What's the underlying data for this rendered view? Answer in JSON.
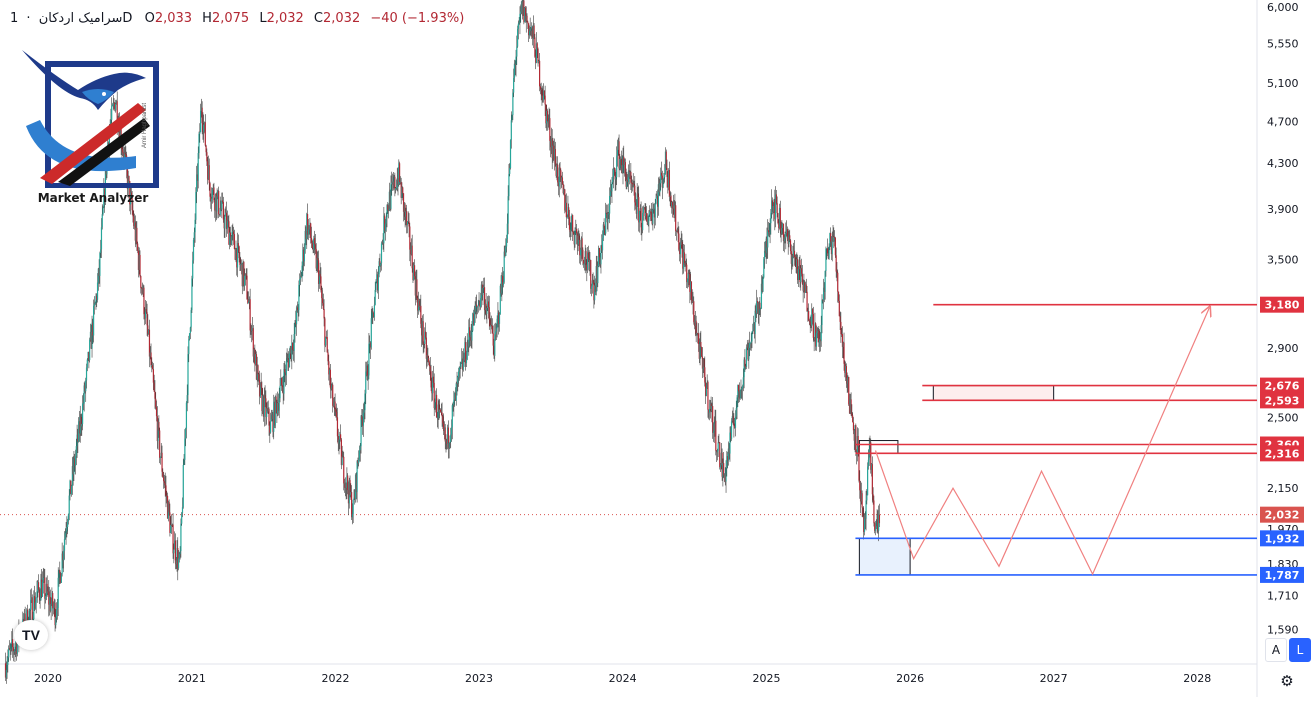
{
  "legend": {
    "symbol": "سرامیک اردکان",
    "interval": "1D",
    "open_label": "O",
    "open": "2,033",
    "high_label": "H",
    "high": "2,075",
    "low_label": "L",
    "low": "2,032",
    "close_label": "C",
    "close": "2,032",
    "change": "−40 (−1.93%)"
  },
  "logo": {
    "text": "Market Analyzer",
    "signature": "Amir Haghparast"
  },
  "tv_logo": "TV",
  "buttons": {
    "auto_label": "A",
    "log_label": "L",
    "settings_icon": "gear-icon"
  },
  "colors": {
    "candle_up": "#26a69a",
    "candle_down": "#b22833",
    "candle_body": "#4a2a2a",
    "resistance": "#e03340",
    "support": "#2962ff",
    "last_price": "#d9534f",
    "zone_fill": "#e8f1fd",
    "projection": "#f08080"
  },
  "chart_data": {
    "type": "candlestick",
    "symbol": "سرامیک اردکان",
    "interval": "1D",
    "y_scale": "log",
    "ylim": [
      1500,
      6000
    ],
    "x_range": [
      "2019-09-01",
      "2028-06-01"
    ],
    "x_ticks": [
      "2020",
      "2021",
      "2022",
      "2023",
      "2024",
      "2025",
      "2026",
      "2027",
      "2028"
    ],
    "y_ticks": [
      "1,590",
      "1,710",
      "1,830",
      "1,970",
      "2,150",
      "2,500",
      "2,900",
      "3,500",
      "3,900",
      "4,300",
      "4,700",
      "5,100",
      "5,550",
      "6,000"
    ],
    "price_path": [
      [
        "2019-09-15",
        1480
      ],
      [
        "2019-11-01",
        1600
      ],
      [
        "2019-12-15",
        1750
      ],
      [
        "2020-01-20",
        1650
      ],
      [
        "2020-02-20",
        2050
      ],
      [
        "2020-04-01",
        2600
      ],
      [
        "2020-05-10",
        3400
      ],
      [
        "2020-06-01",
        4500
      ],
      [
        "2020-06-20",
        4950
      ],
      [
        "2020-07-15",
        4300
      ],
      [
        "2020-08-10",
        3700
      ],
      [
        "2020-09-10",
        3000
      ],
      [
        "2020-10-10",
        2350
      ],
      [
        "2020-11-10",
        1950
      ],
      [
        "2020-12-01",
        1820
      ],
      [
        "2020-12-20",
        2700
      ],
      [
        "2021-01-10",
        3900
      ],
      [
        "2021-01-25",
        4900
      ],
      [
        "2021-02-15",
        4100
      ],
      [
        "2021-03-15",
        3900
      ],
      [
        "2021-04-20",
        3600
      ],
      [
        "2021-05-20",
        3300
      ],
      [
        "2021-06-20",
        2650
      ],
      [
        "2021-07-20",
        2450
      ],
      [
        "2021-08-20",
        2700
      ],
      [
        "2021-09-20",
        3000
      ],
      [
        "2021-10-20",
        3800
      ],
      [
        "2021-11-20",
        3400
      ],
      [
        "2021-12-20",
        2650
      ],
      [
        "2022-01-20",
        2250
      ],
      [
        "2022-02-15",
        2050
      ],
      [
        "2022-03-10",
        2500
      ],
      [
        "2022-04-10",
        3200
      ],
      [
        "2022-05-10",
        3900
      ],
      [
        "2022-06-10",
        4200
      ],
      [
        "2022-07-10",
        3600
      ],
      [
        "2022-08-10",
        3000
      ],
      [
        "2022-09-10",
        2600
      ],
      [
        "2022-10-10",
        2350
      ],
      [
        "2022-11-10",
        2700
      ],
      [
        "2022-12-10",
        3000
      ],
      [
        "2023-01-10",
        3300
      ],
      [
        "2023-02-10",
        2900
      ],
      [
        "2023-03-10",
        3600
      ],
      [
        "2023-04-01",
        5300
      ],
      [
        "2023-04-20",
        6000
      ],
      [
        "2023-05-20",
        5600
      ],
      [
        "2023-06-20",
        4800
      ],
      [
        "2023-07-20",
        4200
      ],
      [
        "2023-08-20",
        3800
      ],
      [
        "2023-09-20",
        3600
      ],
      [
        "2023-10-20",
        3300
      ],
      [
        "2023-11-20",
        3800
      ],
      [
        "2023-12-20",
        4400
      ],
      [
        "2024-01-20",
        4100
      ],
      [
        "2024-02-20",
        3800
      ],
      [
        "2024-03-20",
        3900
      ],
      [
        "2024-04-20",
        4300
      ],
      [
        "2024-05-20",
        3700
      ],
      [
        "2024-06-20",
        3300
      ],
      [
        "2024-07-20",
        2800
      ],
      [
        "2024-08-20",
        2450
      ],
      [
        "2024-09-15",
        2200
      ],
      [
        "2024-10-15",
        2550
      ],
      [
        "2024-11-15",
        2900
      ],
      [
        "2024-12-15",
        3200
      ],
      [
        "2025-01-15",
        4000
      ],
      [
        "2025-02-15",
        3700
      ],
      [
        "2025-03-15",
        3500
      ],
      [
        "2025-04-15",
        3200
      ],
      [
        "2025-05-15",
        2900
      ],
      [
        "2025-06-01",
        3500
      ],
      [
        "2025-06-20",
        3700
      ],
      [
        "2025-07-10",
        3000
      ],
      [
        "2025-07-30",
        2600
      ],
      [
        "2025-08-20",
        2350
      ],
      [
        "2025-09-05",
        1930
      ],
      [
        "2025-09-20",
        2330
      ],
      [
        "2025-10-05",
        1960
      ],
      [
        "2025-10-15",
        2032
      ]
    ],
    "last_price": "2,032",
    "horizontal_levels": [
      {
        "value": 3180,
        "label": "3,180",
        "kind": "resistance"
      },
      {
        "value": 2676,
        "label": "2,676",
        "kind": "resistance"
      },
      {
        "value": 2593,
        "label": "2,593",
        "kind": "resistance"
      },
      {
        "value": 2360,
        "label": "2,360",
        "kind": "resistance"
      },
      {
        "value": 2316,
        "label": "2,316",
        "kind": "resistance"
      },
      {
        "value": 1932,
        "label": "1,932",
        "kind": "support"
      },
      {
        "value": 1787,
        "label": "1,787",
        "kind": "support"
      }
    ],
    "level_starts": {
      "3180": "2026-03-01",
      "2676": "2026-02-01",
      "2593": "2026-02-01",
      "2360": "2025-08-15",
      "2316": "2025-08-15",
      "1932": "2025-08-15",
      "1787": "2025-08-15"
    },
    "zones": [
      {
        "kind": "resistance",
        "x0": "2026-03-01",
        "x1": "2027-01-01",
        "y0": 2593,
        "y1": 2676
      },
      {
        "kind": "support",
        "x0": "2025-08-25",
        "x1": "2026-01-01",
        "y0": 1787,
        "y1": 1932
      },
      {
        "kind": "box",
        "x0": "2025-08-25",
        "x1": "2025-12-01",
        "y0": 2316,
        "y1": 2380
      }
    ],
    "projection_path": [
      [
        "2025-10-05",
        2330
      ],
      [
        "2026-01-10",
        1850
      ],
      [
        "2026-04-20",
        2150
      ],
      [
        "2026-08-15",
        1820
      ],
      [
        "2026-12-01",
        2230
      ],
      [
        "2027-04-10",
        1790
      ],
      [
        "2028-02-01",
        3160
      ]
    ]
  }
}
